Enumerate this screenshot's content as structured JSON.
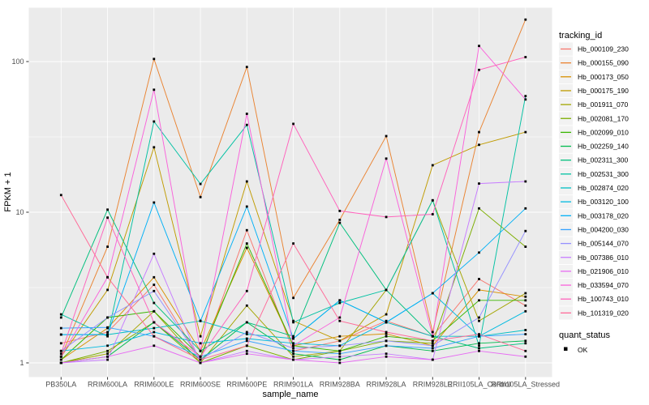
{
  "figure": {
    "background": "#FFFFFF",
    "panel_background": "#EBEBEB",
    "gridline_color": "#FFFFFF",
    "tick_label_color": "#4D4D4D",
    "title_color": "#000000",
    "legend_key_background": "#F2F2F2",
    "marker_color": "#000000"
  },
  "chart_data": {
    "type": "line",
    "title": "",
    "xlabel": "sample_name",
    "ylabel": "FPKM + 1",
    "y_scale": "log10",
    "y_ticks": [
      1,
      10,
      100
    ],
    "y_minor_ticks": [
      3.162,
      31.62
    ],
    "ylim": [
      0.95,
      230
    ],
    "grid": "on",
    "legend_position": "right",
    "legend_title": "tracking_id",
    "quant_legend": {
      "title": "quant_status",
      "marker": "black-square",
      "entries": [
        "OK"
      ]
    },
    "x_categories": [
      "PB350LA",
      "RRIM600LA",
      "RRIM600LE",
      "RRIM600SE",
      "RRIM600PE",
      "RRIM901LA",
      "RRIM928BA",
      "RRIM928LA",
      "RRIM928LE",
      "RRII105LA_Control",
      "RRII105LA_Stressed"
    ],
    "series": [
      {
        "name": "Hb_000109_230",
        "color": "#F8766D",
        "values": [
          1.35,
          1.6,
          3.3,
          1.05,
          7.6,
          1.2,
          1.4,
          1.9,
          1.5,
          3.6,
          2.4
        ]
      },
      {
        "name": "Hb_000155_090",
        "color": "#EA8331",
        "values": [
          1.1,
          5.9,
          104,
          12.6,
          92,
          2.7,
          8.9,
          32,
          1.6,
          34,
          190
        ]
      },
      {
        "name": "Hb_000173_050",
        "color": "#D89000",
        "values": [
          1.05,
          1.7,
          3.7,
          1.2,
          5.8,
          1.3,
          1.5,
          1.56,
          1.3,
          3.05,
          2.75
        ]
      },
      {
        "name": "Hb_000175_190",
        "color": "#C09B00",
        "values": [
          1.1,
          3.05,
          27,
          1.5,
          16,
          1.9,
          1.4,
          2.1,
          20.5,
          28,
          34
        ]
      },
      {
        "name": "Hb_001911_070",
        "color": "#A3A500",
        "values": [
          1.0,
          1.15,
          2.2,
          1.0,
          2.4,
          1.1,
          1.2,
          3.05,
          12,
          1.9,
          2.9
        ]
      },
      {
        "name": "Hb_002081_170",
        "color": "#7CAE00",
        "values": [
          1.0,
          1.2,
          1.86,
          1.0,
          1.3,
          1.05,
          1.2,
          1.4,
          1.35,
          10.6,
          5.9
        ]
      },
      {
        "name": "Hb_002099_010",
        "color": "#39B600",
        "values": [
          1.05,
          2.0,
          2.2,
          1.1,
          6.2,
          1.3,
          1.2,
          1.5,
          1.4,
          2.6,
          2.6
        ]
      },
      {
        "name": "Hb_002259_140",
        "color": "#00BB4E",
        "values": [
          1.0,
          1.1,
          1.86,
          1.05,
          1.86,
          1.15,
          1.05,
          1.3,
          1.2,
          1.35,
          1.4
        ]
      },
      {
        "name": "Hb_002311_300",
        "color": "#00BF7D",
        "values": [
          2.0,
          10.4,
          2.5,
          1.2,
          1.86,
          1.5,
          8.5,
          3.05,
          1.5,
          1.25,
          1.35
        ]
      },
      {
        "name": "Hb_002531_300",
        "color": "#00C1A3",
        "values": [
          2.1,
          1.5,
          40,
          15.4,
          38,
          1.86,
          2.5,
          3.05,
          12,
          1.3,
          59
        ]
      },
      {
        "name": "Hb_002874_020",
        "color": "#00BFC4",
        "values": [
          1.54,
          1.54,
          1.7,
          1.9,
          1.55,
          1.45,
          2.6,
          1.86,
          1.5,
          1.5,
          1.65
        ]
      },
      {
        "name": "Hb_003120_100",
        "color": "#00BAE0",
        "values": [
          1.2,
          1.3,
          1.6,
          1.35,
          1.45,
          1.35,
          1.3,
          1.86,
          2.9,
          1.5,
          2.2
        ]
      },
      {
        "name": "Hb_003178_020",
        "color": "#00B0F6",
        "values": [
          1.54,
          1.54,
          11.6,
          1.9,
          10.9,
          1.45,
          2.6,
          1.86,
          2.9,
          5.4,
          10.6
        ]
      },
      {
        "name": "Hb_004200_030",
        "color": "#35A2FF",
        "values": [
          1.7,
          1.72,
          1.5,
          1.1,
          1.4,
          1.2,
          1.15,
          1.3,
          1.25,
          1.5,
          1.55
        ]
      },
      {
        "name": "Hb_005144_070",
        "color": "#9590FF",
        "values": [
          1.2,
          2.0,
          3.0,
          1.05,
          1.6,
          1.25,
          1.3,
          1.4,
          1.3,
          2.0,
          7.5
        ]
      },
      {
        "name": "Hb_007386_010",
        "color": "#C77CFF",
        "values": [
          1.0,
          1.05,
          5.3,
          1.0,
          1.2,
          1.05,
          1.1,
          1.15,
          1.05,
          15.5,
          16
        ]
      },
      {
        "name": "Hb_021906_010",
        "color": "#E76BF3",
        "values": [
          1.0,
          1.1,
          1.3,
          1.0,
          1.15,
          1.05,
          1.0,
          1.1,
          1.05,
          1.2,
          1.1
        ]
      },
      {
        "name": "Hb_033594_070",
        "color": "#FA62DB",
        "values": [
          1.1,
          3.7,
          65,
          1.2,
          45,
          1.3,
          2.0,
          22.7,
          1.5,
          127,
          56
        ]
      },
      {
        "name": "Hb_100743_010",
        "color": "#FF62BC",
        "values": [
          1.15,
          9.2,
          1.86,
          1.1,
          3.0,
          38.6,
          10.2,
          9.3,
          9.7,
          88,
          107
        ]
      },
      {
        "name": "Hb_101319_020",
        "color": "#FF6A98",
        "values": [
          13,
          3.7,
          1.5,
          1.05,
          1.3,
          6.2,
          1.9,
          1.6,
          1.4,
          1.55,
          1.2
        ]
      }
    ]
  }
}
